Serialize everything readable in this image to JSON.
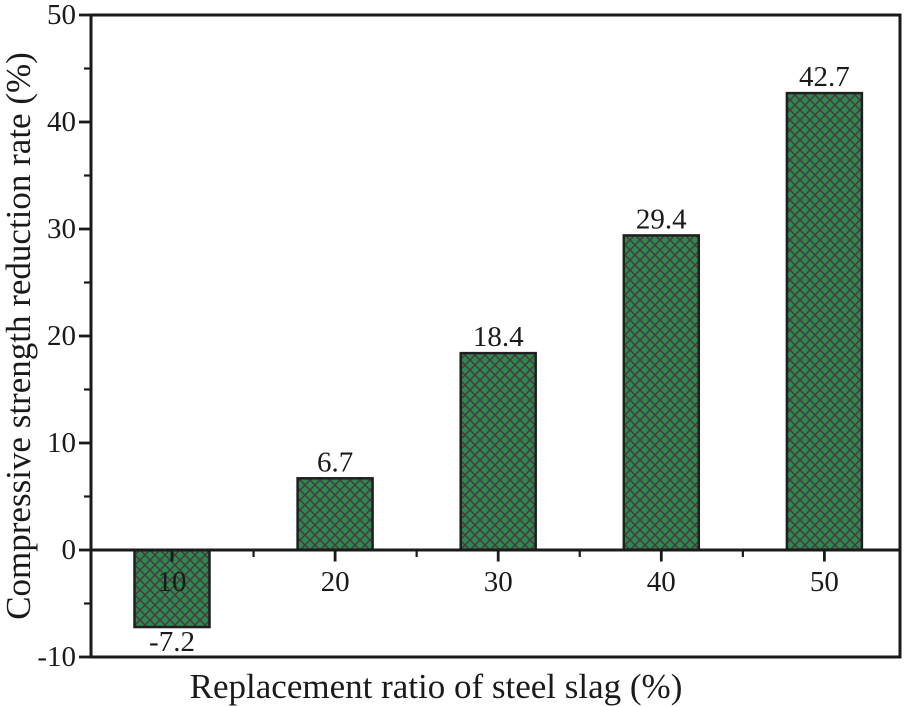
{
  "chart_data": {
    "type": "bar",
    "title": "",
    "xlabel": "Replacement ratio of steel slag (%)",
    "ylabel": "Compressive strength reduction rate (%)",
    "categories": [
      "10",
      "20",
      "30",
      "40",
      "50"
    ],
    "values": [
      -7.2,
      6.7,
      18.4,
      29.4,
      42.7
    ],
    "bar_value_labels": [
      "-7.2",
      "6.7",
      "18.4",
      "29.4",
      "42.7"
    ],
    "series_name": "Compressive strength reduction rate",
    "ylim": [
      -10,
      50
    ],
    "y_major_ticks": [
      -10,
      0,
      10,
      20,
      30,
      40,
      50
    ],
    "y_tick_labels": [
      "-10",
      "0",
      "10",
      "20",
      "30",
      "40",
      "50"
    ],
    "y_minor_tick_values": [
      -5,
      5,
      15,
      25,
      35,
      45
    ],
    "x_minor_ticks_between_categories": true,
    "grid": false,
    "legend_position": "none",
    "bar_hatch": "dense-crosshatch",
    "baseline_value": 0,
    "colors": {
      "bar_fill": "#2a8b4f",
      "bar_hatch_line": "#4f3540",
      "bar_border": "#1f1f1f",
      "axis": "#1a1a1a",
      "text": "#1a1a1a",
      "background": "#ffffff"
    }
  }
}
